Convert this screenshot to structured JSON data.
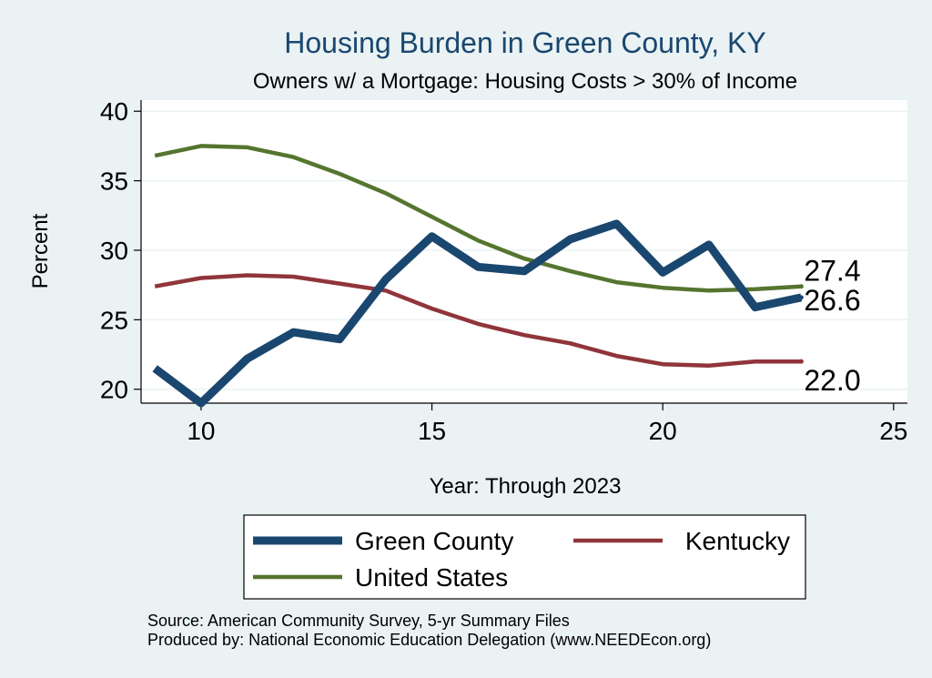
{
  "chart_data": {
    "type": "line",
    "title": "Housing Burden in Green County, KY",
    "subtitle": "Owners w/ a Mortgage: Housing Costs > 30% of Income",
    "xlabel": "Year: Through 2023",
    "ylabel": "Percent",
    "xlim": [
      8.7,
      25.3
    ],
    "ylim": [
      19,
      40.8
    ],
    "xticks": [
      10,
      15,
      20,
      25
    ],
    "yticks": [
      20,
      25,
      30,
      35,
      40
    ],
    "grid": true,
    "legend_position": "bottom",
    "series": [
      {
        "name": "Green County",
        "color": "#1a476f",
        "x": [
          9,
          10,
          11,
          12,
          13,
          14,
          15,
          16,
          17,
          18,
          19,
          20,
          21,
          22,
          23
        ],
        "values": [
          21.5,
          19.0,
          22.2,
          24.1,
          23.6,
          27.9,
          31.0,
          28.8,
          28.5,
          30.8,
          31.9,
          28.4,
          30.4,
          25.9,
          26.6
        ],
        "end_label": "26.6"
      },
      {
        "name": "Kentucky",
        "color": "#90353b",
        "x": [
          9,
          10,
          11,
          12,
          13,
          14,
          15,
          16,
          17,
          18,
          19,
          20,
          21,
          22,
          23
        ],
        "values": [
          27.4,
          28.0,
          28.2,
          28.1,
          27.6,
          27.1,
          25.8,
          24.7,
          23.9,
          23.3,
          22.4,
          21.8,
          21.7,
          22.0,
          22.0
        ],
        "end_label": "22.0"
      },
      {
        "name": "United States",
        "color": "#55752f",
        "x": [
          9,
          10,
          11,
          12,
          13,
          14,
          15,
          16,
          17,
          18,
          19,
          20,
          21,
          22,
          23
        ],
        "values": [
          36.8,
          37.5,
          37.4,
          36.7,
          35.5,
          34.1,
          32.4,
          30.7,
          29.4,
          28.5,
          27.7,
          27.3,
          27.1,
          27.2,
          27.4
        ],
        "end_label": "27.4"
      }
    ],
    "legend": [
      "Green County",
      "Kentucky",
      "United States"
    ],
    "notes": [
      "Source: American Community Survey, 5-yr Summary Files",
      "Produced by: National Economic Education Delegation (www.NEEDEcon.org)"
    ]
  }
}
